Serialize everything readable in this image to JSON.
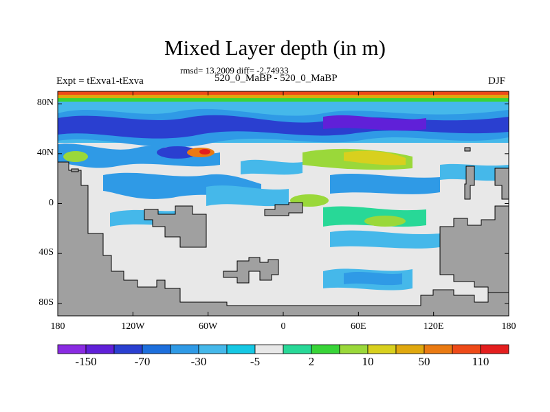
{
  "title": "Mixed Layer depth (in m)",
  "stats": "rmsd= 13.2009 diff= -2.74933",
  "experiment": "Expt = tExva1-tExva",
  "subtitle": "520_0_MaBP - 520_0_MaBP",
  "season": "DJF",
  "axes": {
    "y_ticks": [
      {
        "label": "80N",
        "lat": 80
      },
      {
        "label": "40N",
        "lat": 40
      },
      {
        "label": "0",
        "lat": 0
      },
      {
        "label": "40S",
        "lat": -40
      },
      {
        "label": "80S",
        "lat": -80
      }
    ],
    "x_ticks": [
      {
        "label": "180",
        "lon": -180
      },
      {
        "label": "120W",
        "lon": -120
      },
      {
        "label": "60W",
        "lon": -60
      },
      {
        "label": "0",
        "lon": 0
      },
      {
        "label": "60E",
        "lon": 60
      },
      {
        "label": "120E",
        "lon": 120
      },
      {
        "label": "180",
        "lon": 180
      }
    ],
    "lon_range": [
      -180,
      180
    ],
    "lat_range": [
      -90,
      90
    ]
  },
  "colorbar": {
    "colors": [
      "#8a2be2",
      "#6020d8",
      "#2a3fd0",
      "#1d6fdc",
      "#2f9ae6",
      "#45b8ea",
      "#16c8e4",
      "#e8e8e8",
      "#28d897",
      "#38d438",
      "#9ad83a",
      "#d8d01e",
      "#e0a80e",
      "#ea7a12",
      "#ee4a18",
      "#e41e1e"
    ],
    "labels": [
      {
        "text": "-150",
        "after_box": 1
      },
      {
        "text": "-70",
        "after_box": 3
      },
      {
        "text": "-30",
        "after_box": 5
      },
      {
        "text": "-5",
        "after_box": 7
      },
      {
        "text": "2",
        "after_box": 9
      },
      {
        "text": "10",
        "after_box": 11
      },
      {
        "text": "50",
        "after_box": 13
      },
      {
        "text": "110",
        "after_box": 15
      }
    ]
  },
  "land_color": "#a0a0a0",
  "neutral_ocean_color": "#e8e8e8"
}
